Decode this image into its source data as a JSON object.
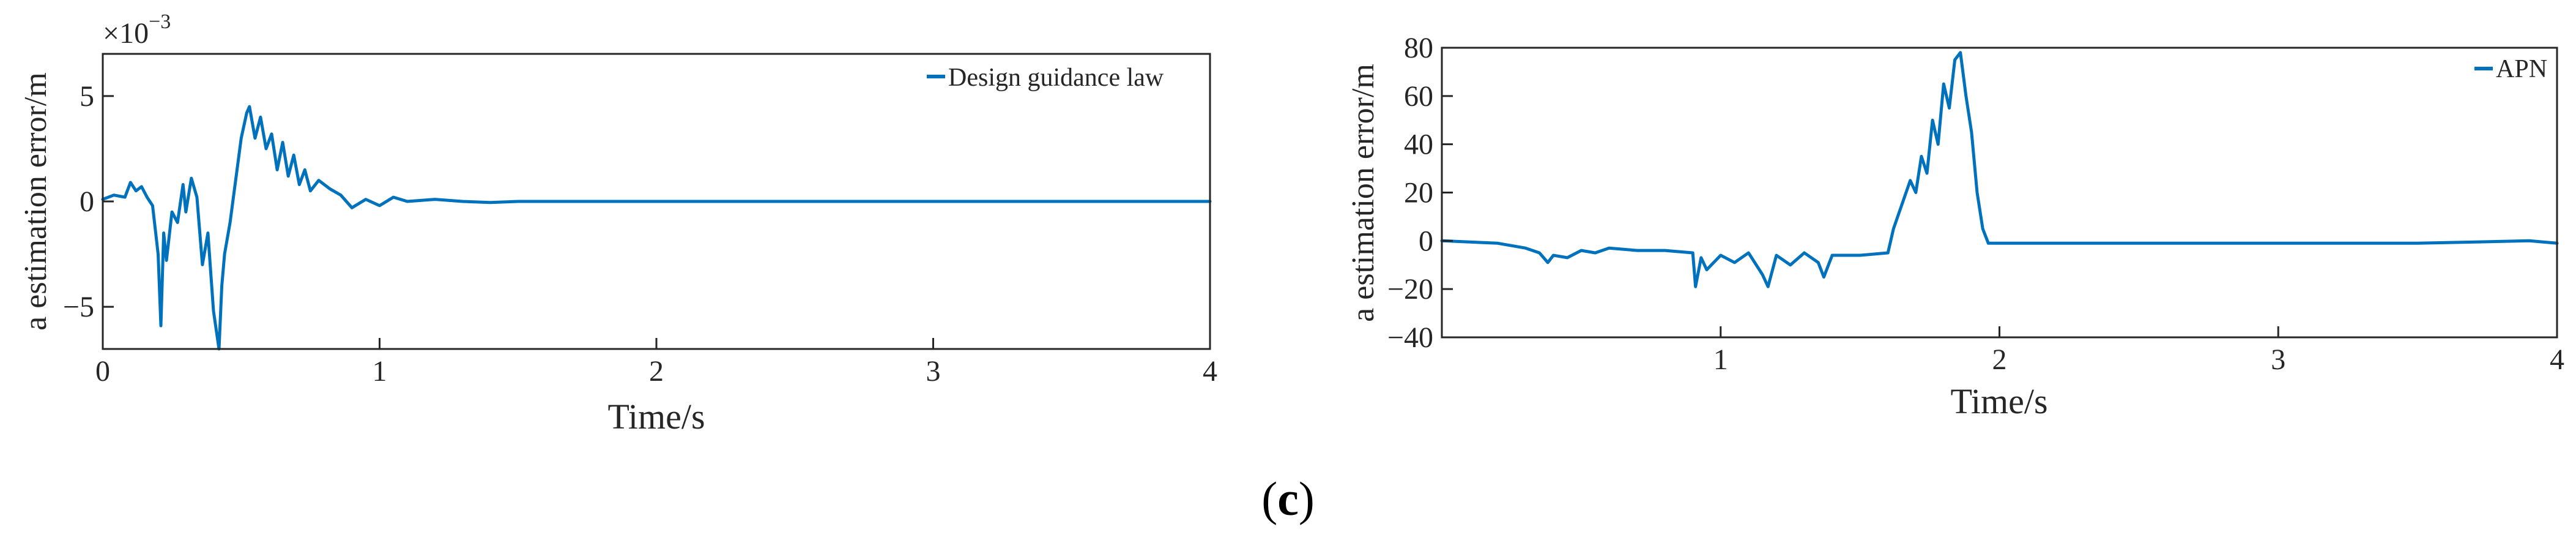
{
  "caption": {
    "open": "(",
    "letter": "c",
    "close": ")"
  },
  "colors": {
    "series": "#0072BD",
    "axis": "#262626",
    "frame": "#262626"
  },
  "chart_data": [
    {
      "type": "line",
      "title": "",
      "xlabel": "Time/s",
      "ylabel": "a estimation error/m",
      "y_exponent_label": "×10",
      "y_exponent_power": "−3",
      "xlim": [
        0,
        4
      ],
      "ylim": [
        -7,
        7
      ],
      "xticks": [
        0,
        1,
        2,
        3,
        4
      ],
      "xtick_labels": [
        "0",
        "1",
        "2",
        "3",
        "4"
      ],
      "yticks": [
        -5,
        0,
        5
      ],
      "ytick_labels": [
        "−5",
        "0",
        "5"
      ],
      "grid": false,
      "legend_position": "top-right",
      "series": [
        {
          "name": "Design guidance law",
          "x": [
            0,
            0.04,
            0.08,
            0.1,
            0.12,
            0.14,
            0.16,
            0.18,
            0.2,
            0.21,
            0.22,
            0.23,
            0.25,
            0.27,
            0.29,
            0.3,
            0.32,
            0.34,
            0.36,
            0.38,
            0.4,
            0.42,
            0.43,
            0.44,
            0.46,
            0.48,
            0.5,
            0.52,
            0.53,
            0.55,
            0.57,
            0.59,
            0.61,
            0.63,
            0.65,
            0.67,
            0.69,
            0.71,
            0.73,
            0.75,
            0.78,
            0.82,
            0.86,
            0.9,
            0.95,
            1.0,
            1.05,
            1.1,
            1.2,
            1.3,
            1.4,
            1.5,
            2.0,
            2.5,
            3.0,
            3.5,
            4.0
          ],
          "values": [
            0.1,
            0.3,
            0.2,
            0.9,
            0.5,
            0.7,
            0.2,
            -0.2,
            -2.5,
            -5.9,
            -1.5,
            -2.8,
            -0.5,
            -1.0,
            0.8,
            -0.5,
            1.1,
            0.2,
            -3.0,
            -1.5,
            -5.2,
            -7.0,
            -4.0,
            -2.5,
            -1.0,
            1.0,
            3.0,
            4.2,
            4.5,
            3.0,
            4.0,
            2.5,
            3.2,
            1.5,
            2.8,
            1.2,
            2.2,
            0.8,
            1.5,
            0.5,
            1.0,
            0.6,
            0.3,
            -0.3,
            0.1,
            -0.2,
            0.2,
            0.0,
            0.1,
            0.0,
            -0.05,
            0.0,
            0.0,
            0.0,
            0.0,
            0.0,
            0.0
          ]
        }
      ]
    },
    {
      "type": "line",
      "title": "",
      "xlabel": "Time/s",
      "ylabel": "a estimation error/m",
      "xlim": [
        0,
        4
      ],
      "ylim": [
        -40,
        80
      ],
      "xticks": [
        1,
        2,
        3,
        4
      ],
      "xtick_labels": [
        "1",
        "2",
        "3",
        "4"
      ],
      "yticks": [
        -40,
        -20,
        0,
        20,
        40,
        60,
        80
      ],
      "ytick_labels": [
        "−40",
        "−20",
        "0",
        "20",
        "40",
        "60",
        "80"
      ],
      "grid": false,
      "legend_position": "top-right",
      "series": [
        {
          "name": "APN",
          "x": [
            0,
            0.2,
            0.3,
            0.35,
            0.38,
            0.4,
            0.45,
            0.5,
            0.55,
            0.6,
            0.7,
            0.8,
            0.9,
            0.91,
            0.93,
            0.95,
            1.0,
            1.05,
            1.1,
            1.15,
            1.17,
            1.2,
            1.25,
            1.3,
            1.35,
            1.37,
            1.4,
            1.5,
            1.6,
            1.62,
            1.65,
            1.68,
            1.7,
            1.72,
            1.74,
            1.76,
            1.78,
            1.8,
            1.82,
            1.84,
            1.86,
            1.88,
            1.9,
            1.92,
            1.94,
            1.96,
            2.0,
            2.5,
            3.0,
            3.5,
            3.9,
            4.0
          ],
          "values": [
            0,
            -1,
            -3,
            -5,
            -9,
            -6,
            -7,
            -4,
            -5,
            -3,
            -4,
            -4,
            -5,
            -19,
            -7,
            -12,
            -6,
            -9,
            -5,
            -14,
            -19,
            -6,
            -10,
            -5,
            -9,
            -15,
            -6,
            -6,
            -5,
            5,
            15,
            25,
            20,
            35,
            28,
            50,
            40,
            65,
            55,
            75,
            78,
            60,
            45,
            20,
            5,
            -1,
            -1,
            -1,
            -1,
            -1,
            0,
            -1
          ]
        }
      ]
    }
  ]
}
